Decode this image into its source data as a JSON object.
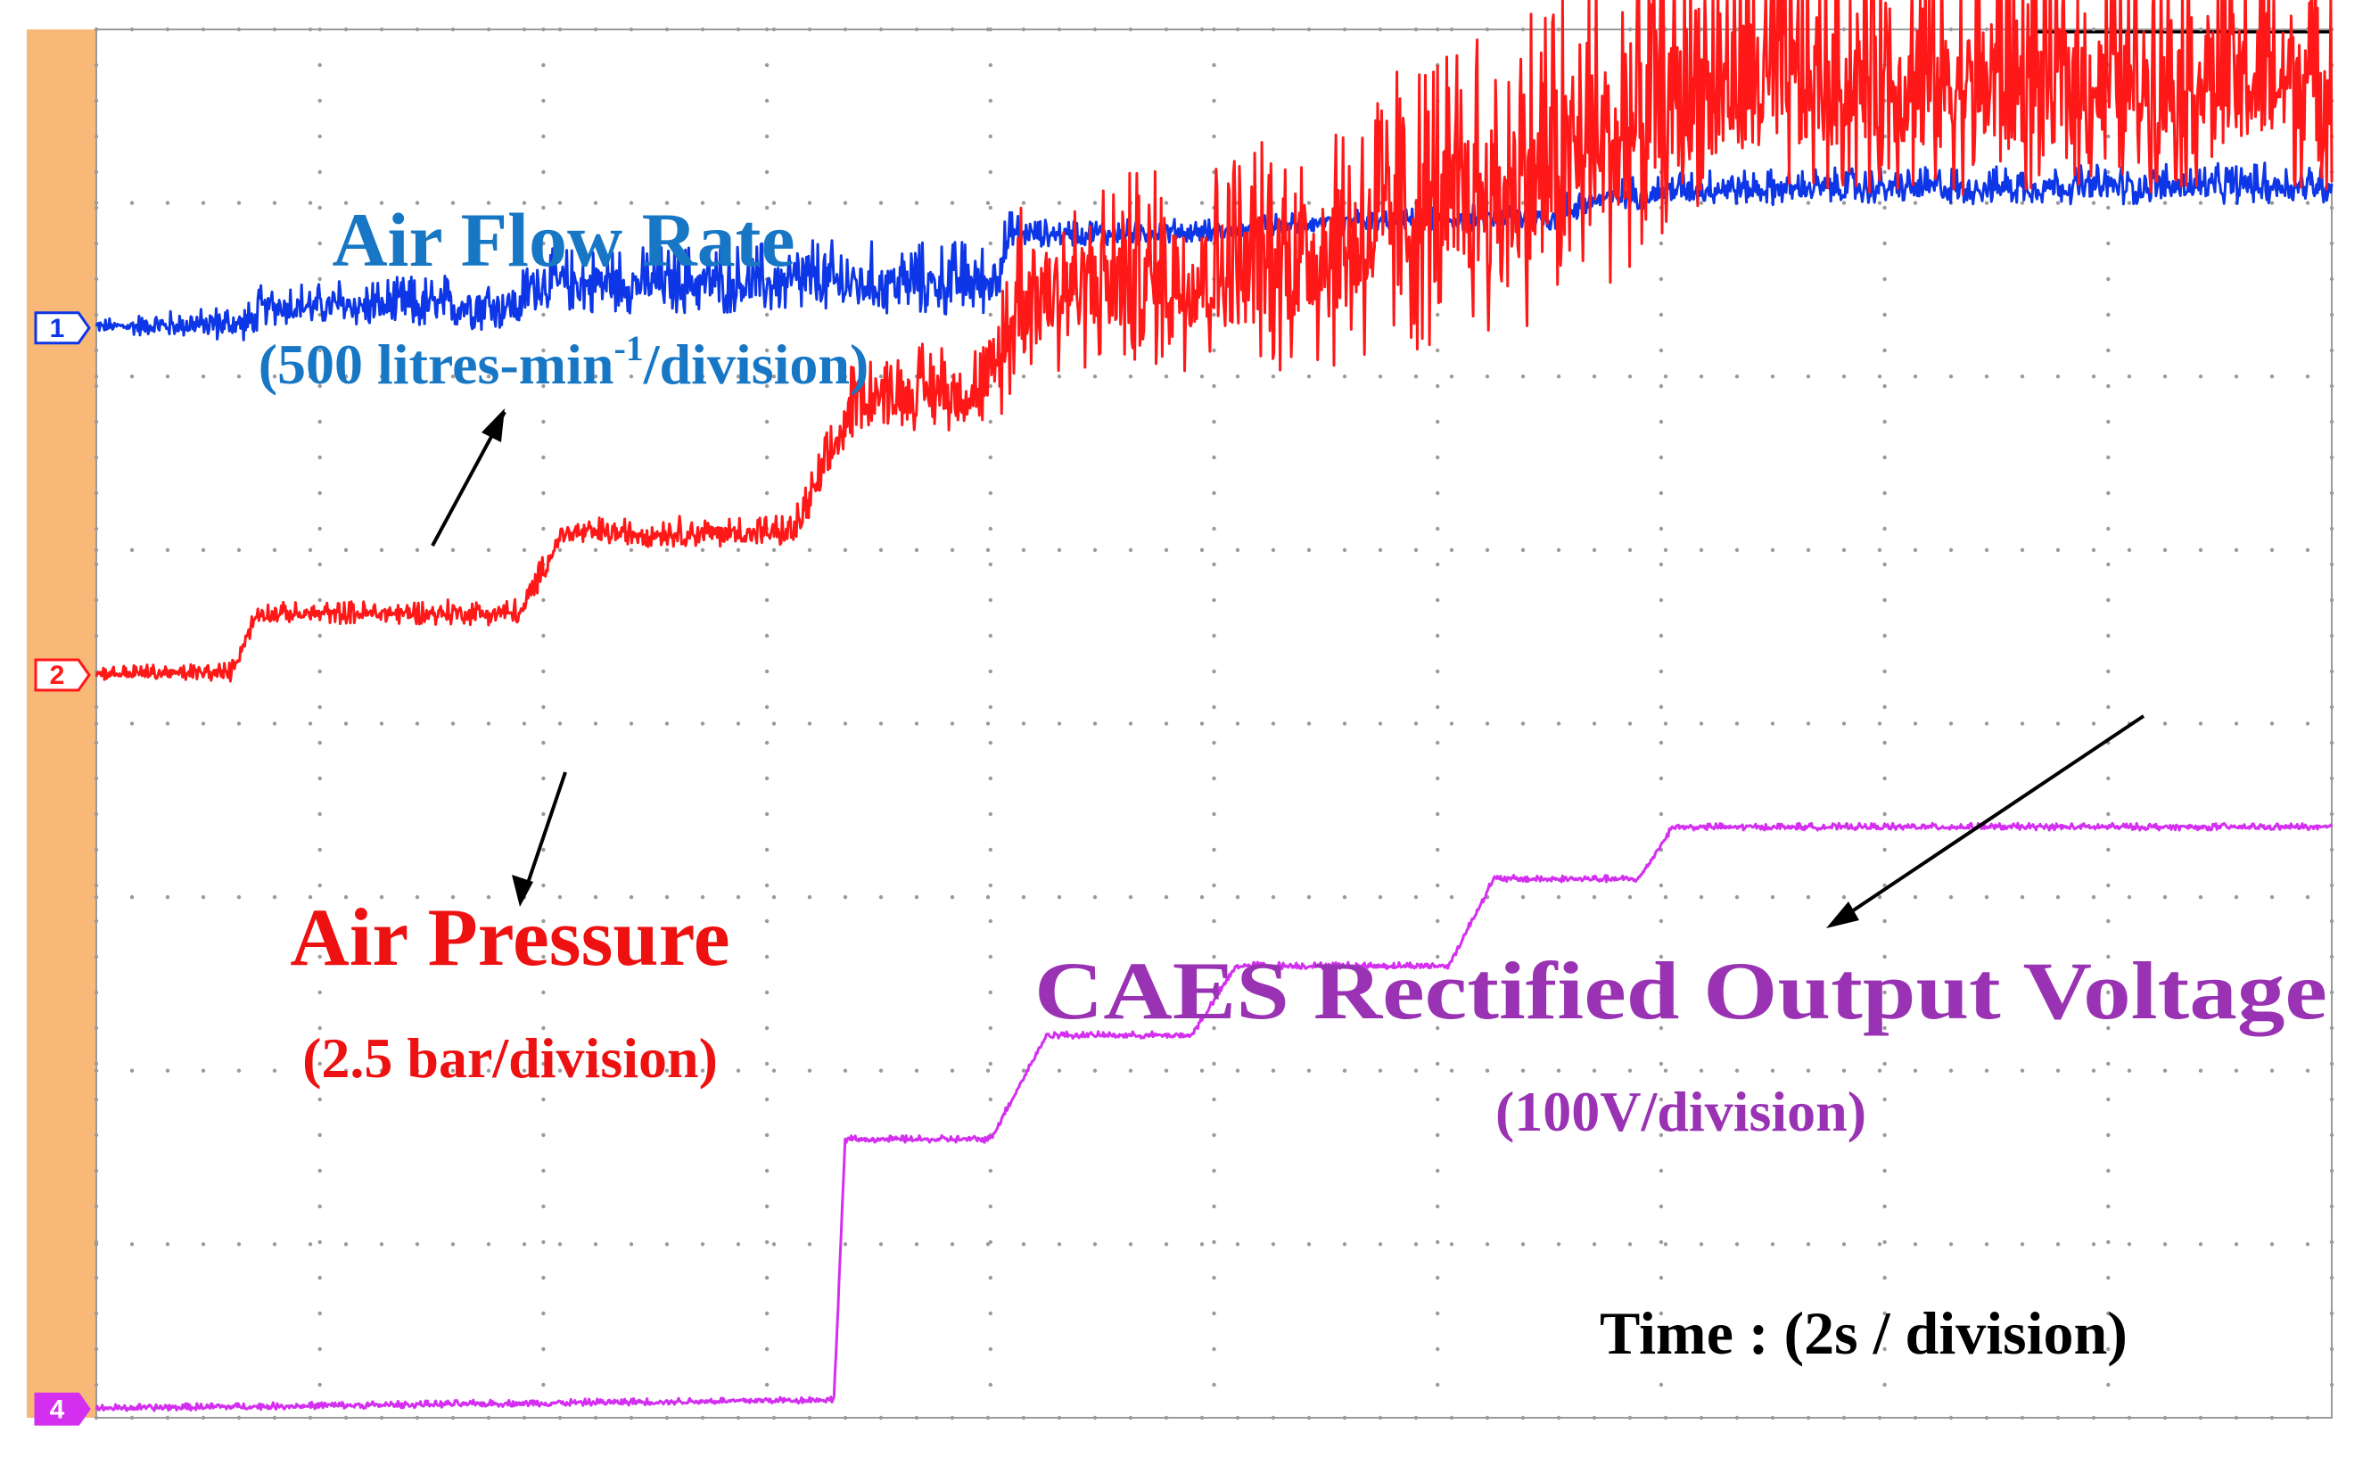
{
  "chart_data": {
    "type": "line",
    "title": "",
    "grid": true,
    "xlabel": "Time : (2s / division)",
    "x_divisions": 10,
    "y_divisions": 8,
    "x_unit": "division",
    "colors": {
      "side_strip": "#f8b878",
      "grid_dots": "#9a9a9a",
      "frame": "#9a9a9a"
    },
    "series": [
      {
        "id": "ch1",
        "marker": "1",
        "name": "Air Flow Rate",
        "scale": "(500 litres-min",
        "scale_sup": "-1",
        "scale_tail": "/division)",
        "color": "#0d36e6",
        "label_color": "#1777c4",
        "noise": [
          [
            0,
            0.04
          ],
          [
            0.72,
            0.12
          ],
          [
            1.95,
            0.18
          ],
          [
            3.2,
            0.22
          ],
          [
            4.02,
            0.22
          ],
          [
            4.15,
            0.08
          ],
          [
            5.8,
            0.06
          ],
          [
            6.6,
            0.1
          ],
          [
            10,
            0.12
          ]
        ],
        "points": [
          [
            0,
            6.28
          ],
          [
            0.7,
            6.28
          ],
          [
            0.74,
            6.38
          ],
          [
            1.9,
            6.38
          ],
          [
            1.95,
            6.5
          ],
          [
            3.2,
            6.5
          ],
          [
            3.28,
            6.5
          ],
          [
            4.0,
            6.5
          ],
          [
            4.1,
            6.8
          ],
          [
            5.0,
            6.82
          ],
          [
            5.5,
            6.88
          ],
          [
            6.5,
            6.9
          ],
          [
            6.7,
            7.0
          ],
          [
            7.1,
            7.06
          ],
          [
            10,
            7.08
          ]
        ]
      },
      {
        "id": "ch2",
        "marker": "2",
        "name": "Air Pressure",
        "scale": "(2.5 bar/division)",
        "color": "#ff1818",
        "label_color": "#ee1111",
        "noise": [
          [
            0,
            0.04
          ],
          [
            0.7,
            0.06
          ],
          [
            2.0,
            0.08
          ],
          [
            3.1,
            0.1
          ],
          [
            3.35,
            0.22
          ],
          [
            4.0,
            0.28
          ],
          [
            4.1,
            0.55
          ],
          [
            5.0,
            0.6
          ],
          [
            5.5,
            0.8
          ],
          [
            6.0,
            0.9
          ],
          [
            6.6,
            1.0
          ],
          [
            6.9,
            0.9
          ],
          [
            7.2,
            0.75
          ],
          [
            10,
            0.72
          ]
        ],
        "points": [
          [
            0,
            4.28
          ],
          [
            0.6,
            4.28
          ],
          [
            0.72,
            4.62
          ],
          [
            1.9,
            4.62
          ],
          [
            2.08,
            5.08
          ],
          [
            3.12,
            5.08
          ],
          [
            3.25,
            5.4
          ],
          [
            3.4,
            5.85
          ],
          [
            4.0,
            5.88
          ],
          [
            4.15,
            6.4
          ],
          [
            4.9,
            6.45
          ],
          [
            5.5,
            6.58
          ],
          [
            6.3,
            6.9
          ],
          [
            6.8,
            7.2
          ],
          [
            7.2,
            7.55
          ],
          [
            10,
            7.58
          ]
        ]
      },
      {
        "id": "ch4",
        "marker": "4",
        "name": "CAES Rectified Output Voltage",
        "scale": "(100V/division)",
        "color": "#d42ff0",
        "label_color": "#9933b3",
        "noise": [
          [
            0,
            0.02
          ],
          [
            10,
            0.02
          ]
        ],
        "points": [
          [
            0,
            0.05
          ],
          [
            3.3,
            0.1
          ],
          [
            3.35,
            1.6
          ],
          [
            4.0,
            1.6
          ],
          [
            4.25,
            2.2
          ],
          [
            4.9,
            2.2
          ],
          [
            5.1,
            2.6
          ],
          [
            6.05,
            2.6
          ],
          [
            6.25,
            3.1
          ],
          [
            6.9,
            3.1
          ],
          [
            7.05,
            3.4
          ],
          [
            10,
            3.4
          ]
        ]
      }
    ]
  }
}
